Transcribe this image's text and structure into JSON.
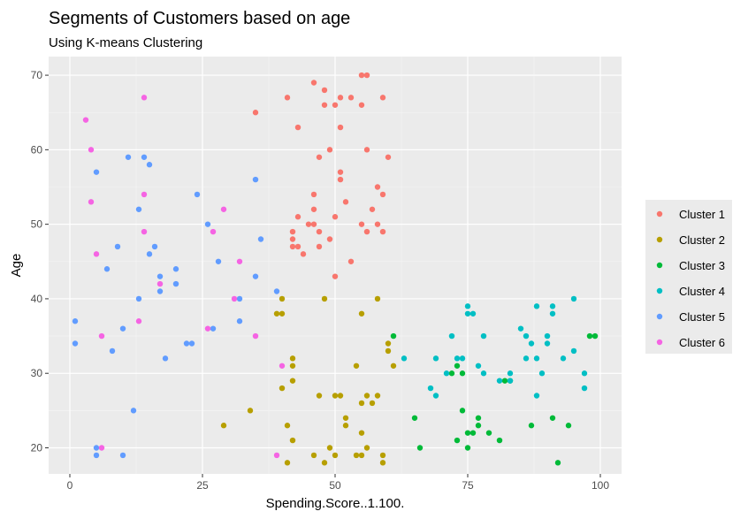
{
  "chart_data": {
    "type": "scatter",
    "title": "Segments of Customers based on age",
    "subtitle": "Using K-means Clustering",
    "xlabel": "Spending.Score..1.100.",
    "ylabel": "Age",
    "xlim": [
      -4,
      104
    ],
    "ylim": [
      16.5,
      72.5
    ],
    "x_ticks": [
      0,
      25,
      50,
      75,
      100
    ],
    "y_ticks": [
      20,
      30,
      40,
      50,
      60,
      70
    ],
    "grid": true,
    "legend_position": "right",
    "colors": [
      "#F8766D",
      "#B79F00",
      "#00BA38",
      "#00BFC4",
      "#619CFF",
      "#F564E3"
    ],
    "series": [
      {
        "name": "Cluster 1",
        "points": [
          [
            55,
            70
          ],
          [
            56,
            70
          ],
          [
            46,
            69
          ],
          [
            48,
            68
          ],
          [
            41,
            67
          ],
          [
            53,
            67
          ],
          [
            59,
            67
          ],
          [
            50,
            66
          ],
          [
            48,
            66
          ],
          [
            55,
            66
          ],
          [
            35,
            65
          ],
          [
            43,
            63
          ],
          [
            51,
            63
          ],
          [
            49,
            60
          ],
          [
            56,
            60
          ],
          [
            47,
            59
          ],
          [
            60,
            59
          ],
          [
            51,
            57
          ],
          [
            58,
            55
          ],
          [
            59,
            54
          ],
          [
            46,
            54
          ],
          [
            52,
            53
          ],
          [
            46,
            52
          ],
          [
            57,
            52
          ],
          [
            43,
            51
          ],
          [
            50,
            51
          ],
          [
            45,
            50
          ],
          [
            46,
            50
          ],
          [
            55,
            50
          ],
          [
            58,
            50
          ],
          [
            42,
            49
          ],
          [
            47,
            49
          ],
          [
            49,
            48
          ],
          [
            56,
            49
          ],
          [
            59,
            49
          ],
          [
            42,
            48
          ],
          [
            42,
            47
          ],
          [
            43,
            47
          ],
          [
            44,
            46
          ],
          [
            47,
            47
          ],
          [
            53,
            45
          ],
          [
            50,
            43
          ],
          [
            51,
            56
          ],
          [
            51,
            67
          ]
        ]
      },
      {
        "name": "Cluster 2",
        "points": [
          [
            40,
            40
          ],
          [
            48,
            40
          ],
          [
            58,
            40
          ],
          [
            40,
            38
          ],
          [
            55,
            38
          ],
          [
            60,
            34
          ],
          [
            60,
            33
          ],
          [
            42,
            32
          ],
          [
            42,
            31
          ],
          [
            54,
            31
          ],
          [
            61,
            31
          ],
          [
            42,
            29
          ],
          [
            40,
            28
          ],
          [
            47,
            27
          ],
          [
            50,
            27
          ],
          [
            51,
            27
          ],
          [
            56,
            27
          ],
          [
            57,
            26
          ],
          [
            55,
            26
          ],
          [
            34,
            25
          ],
          [
            52,
            24
          ],
          [
            29,
            23
          ],
          [
            41,
            23
          ],
          [
            52,
            23
          ],
          [
            55,
            22
          ],
          [
            42,
            21
          ],
          [
            49,
            20
          ],
          [
            56,
            20
          ],
          [
            46,
            19
          ],
          [
            50,
            19
          ],
          [
            54,
            19
          ],
          [
            55,
            19
          ],
          [
            59,
            19
          ],
          [
            48,
            18
          ],
          [
            41,
            18
          ],
          [
            59,
            18
          ],
          [
            39,
            38
          ],
          [
            58,
            27
          ]
        ]
      },
      {
        "name": "Cluster 3",
        "points": [
          [
            61,
            35
          ],
          [
            98,
            35
          ],
          [
            99,
            35
          ],
          [
            73,
            31
          ],
          [
            74,
            30
          ],
          [
            72,
            30
          ],
          [
            82,
            29
          ],
          [
            83,
            29
          ],
          [
            74,
            25
          ],
          [
            77,
            24
          ],
          [
            91,
            24
          ],
          [
            65,
            24
          ],
          [
            87,
            23
          ],
          [
            94,
            23
          ],
          [
            77,
            23
          ],
          [
            75,
            22
          ],
          [
            79,
            22
          ],
          [
            76,
            22
          ],
          [
            73,
            21
          ],
          [
            81,
            21
          ],
          [
            75,
            20
          ],
          [
            66,
            20
          ],
          [
            92,
            18
          ]
        ]
      },
      {
        "name": "Cluster 4",
        "points": [
          [
            75,
            39
          ],
          [
            88,
            39
          ],
          [
            91,
            39
          ],
          [
            95,
            40
          ],
          [
            75,
            38
          ],
          [
            76,
            38
          ],
          [
            91,
            38
          ],
          [
            85,
            36
          ],
          [
            72,
            35
          ],
          [
            78,
            35
          ],
          [
            86,
            35
          ],
          [
            90,
            35
          ],
          [
            87,
            34
          ],
          [
            90,
            34
          ],
          [
            63,
            32
          ],
          [
            69,
            32
          ],
          [
            73,
            32
          ],
          [
            74,
            32
          ],
          [
            83,
            30
          ],
          [
            86,
            32
          ],
          [
            88,
            32
          ],
          [
            93,
            32
          ],
          [
            95,
            33
          ],
          [
            77,
            31
          ],
          [
            83,
            29
          ],
          [
            89,
            30
          ],
          [
            97,
            30
          ],
          [
            78,
            30
          ],
          [
            81,
            29
          ],
          [
            71,
            30
          ],
          [
            68,
            28
          ],
          [
            97,
            28
          ],
          [
            69,
            27
          ],
          [
            88,
            27
          ]
        ]
      },
      {
        "name": "Cluster 5",
        "points": [
          [
            11,
            59
          ],
          [
            14,
            59
          ],
          [
            15,
            58
          ],
          [
            5,
            57
          ],
          [
            35,
            56
          ],
          [
            24,
            54
          ],
          [
            13,
            52
          ],
          [
            26,
            50
          ],
          [
            16,
            47
          ],
          [
            9,
            47
          ],
          [
            15,
            46
          ],
          [
            36,
            48
          ],
          [
            28,
            45
          ],
          [
            20,
            44
          ],
          [
            7,
            44
          ],
          [
            17,
            43
          ],
          [
            35,
            43
          ],
          [
            17,
            41
          ],
          [
            20,
            42
          ],
          [
            13,
            40
          ],
          [
            32,
            40
          ],
          [
            39,
            41
          ],
          [
            27,
            36
          ],
          [
            10,
            36
          ],
          [
            1,
            37
          ],
          [
            32,
            37
          ],
          [
            1,
            34
          ],
          [
            22,
            34
          ],
          [
            23,
            34
          ],
          [
            8,
            33
          ],
          [
            18,
            32
          ],
          [
            12,
            25
          ],
          [
            5,
            20
          ],
          [
            5,
            19
          ],
          [
            10,
            19
          ]
        ]
      },
      {
        "name": "Cluster 6",
        "points": [
          [
            14,
            67
          ],
          [
            3,
            64
          ],
          [
            4,
            60
          ],
          [
            14,
            54
          ],
          [
            4,
            53
          ],
          [
            29,
            52
          ],
          [
            14,
            49
          ],
          [
            27,
            49
          ],
          [
            5,
            46
          ],
          [
            32,
            45
          ],
          [
            17,
            42
          ],
          [
            31,
            40
          ],
          [
            13,
            37
          ],
          [
            26,
            36
          ],
          [
            6,
            35
          ],
          [
            35,
            35
          ],
          [
            40,
            31
          ],
          [
            6,
            20
          ],
          [
            39,
            19
          ]
        ]
      }
    ]
  }
}
